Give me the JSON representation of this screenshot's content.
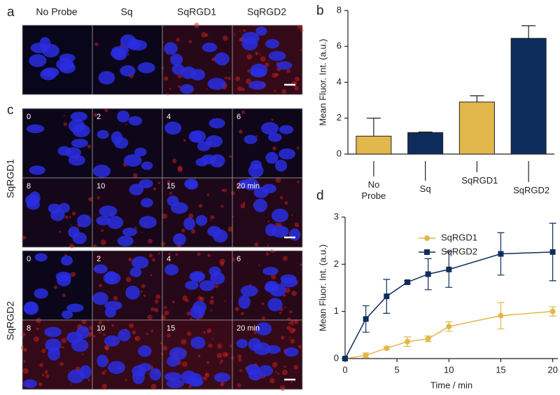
{
  "panel_a": {
    "label": "a",
    "columns": [
      "No Probe",
      "Sq",
      "SqRGD1",
      "SqRGD2"
    ]
  },
  "panel_c": {
    "label": "c",
    "rows": [
      "SqRGD1",
      "SqRGD2"
    ],
    "times": [
      "0",
      "2",
      "4",
      "6",
      "8",
      "10",
      "15",
      "20 min"
    ]
  },
  "chart_data": [
    {
      "type": "bar",
      "panel": "b",
      "ylabel": "Mean Fluor. Int. (a.u.)",
      "categories": [
        "No Probe",
        "Sq",
        "SqRGD1",
        "SqRGD2"
      ],
      "values": [
        1.0,
        1.2,
        2.9,
        6.45
      ],
      "errors": [
        1.0,
        0.03,
        0.35,
        0.7
      ],
      "colors": [
        "#e2b84c",
        "#0e2d5c",
        "#e2b84c",
        "#0e2d5c"
      ],
      "ylim": [
        0,
        8
      ],
      "yticks": [
        0,
        2,
        4,
        6,
        8
      ]
    },
    {
      "type": "line",
      "panel": "d",
      "xlabel": "Time / min",
      "ylabel": "Mean Fluor. Int. (a.u.)",
      "x": [
        0,
        2,
        4,
        6,
        8,
        10,
        15,
        20
      ],
      "series": [
        {
          "name": "SqRGD1",
          "color": "#e2b84c",
          "marker": "circle",
          "values": [
            0,
            0.07,
            0.22,
            0.36,
            0.42,
            0.68,
            0.91,
            1.0
          ],
          "errors": [
            0,
            0.05,
            0.03,
            0.1,
            0.06,
            0.1,
            0.28,
            0.1
          ]
        },
        {
          "name": "SqRGD2",
          "color": "#0e2d5c",
          "marker": "square",
          "values": [
            0,
            0.84,
            1.32,
            1.62,
            1.79,
            1.89,
            2.22,
            2.26
          ],
          "errors": [
            0,
            0.28,
            0.36,
            0.03,
            0.33,
            0.38,
            0.45,
            0.61
          ]
        }
      ],
      "xlim": [
        0,
        20.5
      ],
      "xticks": [
        0,
        5,
        10,
        15,
        20
      ],
      "ylim": [
        0,
        3
      ],
      "yticks": [
        0,
        1,
        2,
        3
      ]
    }
  ]
}
